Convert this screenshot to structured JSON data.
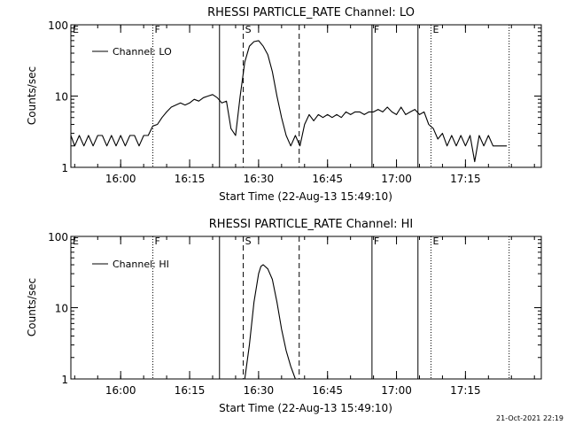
{
  "stamp": "21-Oct-2021 22:19",
  "chart_data": [
    {
      "type": "line",
      "title": "RHESSI PARTICLE_RATE Channel: LO",
      "xlabel": "Start Time (22-Aug-13 15:49:10)",
      "ylabel": "Counts/sec",
      "xlim": [
        "15:49:10",
        "17:31:30"
      ],
      "ylim": [
        1,
        100
      ],
      "yscale": "log",
      "yticks": [
        "1",
        "10",
        "100"
      ],
      "xticks": [
        "16:00",
        "16:15",
        "16:30",
        "16:45",
        "17:00",
        "17:15"
      ],
      "legend": {
        "position": "top-left",
        "entries": [
          "Channel: LO"
        ]
      },
      "markers": [
        {
          "time": "16:07:00",
          "label": "F",
          "style": "dotted"
        },
        {
          "time": "16:21:30",
          "label": "",
          "style": "solid"
        },
        {
          "time": "16:26:40",
          "label": "S",
          "style": "dashed"
        },
        {
          "time": "16:38:50",
          "label": "",
          "style": "dashed"
        },
        {
          "time": "16:54:40",
          "label": "F",
          "style": "solid"
        },
        {
          "time": "17:04:40",
          "label": "",
          "style": "solid"
        },
        {
          "time": "17:07:30",
          "label": "E",
          "style": "dotted"
        },
        {
          "time": "17:24:30",
          "label": "",
          "style": "dotted"
        },
        {
          "time": "15:49:10",
          "label": "E",
          "style": "none"
        }
      ],
      "series": [
        {
          "name": "Channel: LO",
          "x": [
            "15:49:10",
            "15:50:00",
            "15:51:00",
            "15:52:00",
            "15:53:00",
            "15:54:00",
            "15:55:00",
            "15:56:00",
            "15:57:00",
            "15:58:00",
            "15:59:00",
            "16:00:00",
            "16:01:00",
            "16:02:00",
            "16:03:00",
            "16:04:00",
            "16:05:00",
            "16:06:00",
            "16:07:00",
            "16:08:00",
            "16:09:00",
            "16:10:00",
            "16:11:00",
            "16:12:00",
            "16:13:00",
            "16:14:00",
            "16:15:00",
            "16:16:00",
            "16:17:00",
            "16:18:00",
            "16:19:00",
            "16:20:00",
            "16:21:00",
            "16:22:00",
            "16:23:00",
            "16:24:00",
            "16:25:00",
            "16:26:00",
            "16:27:00",
            "16:28:00",
            "16:29:00",
            "16:30:00",
            "16:31:00",
            "16:32:00",
            "16:33:00",
            "16:34:00",
            "16:35:00",
            "16:36:00",
            "16:37:00",
            "16:38:00",
            "16:39:00",
            "16:40:00",
            "16:41:00",
            "16:42:00",
            "16:43:00",
            "16:44:00",
            "16:45:00",
            "16:46:00",
            "16:47:00",
            "16:48:00",
            "16:49:00",
            "16:50:00",
            "16:51:00",
            "16:52:00",
            "16:53:00",
            "16:54:00",
            "16:55:00",
            "16:56:00",
            "16:57:00",
            "16:58:00",
            "16:59:00",
            "17:00:00",
            "17:01:00",
            "17:02:00",
            "17:03:00",
            "17:04:00",
            "17:05:00",
            "17:06:00",
            "17:07:00",
            "17:08:00",
            "17:09:00",
            "17:10:00",
            "17:11:00",
            "17:12:00",
            "17:13:00",
            "17:14:00",
            "17:15:00",
            "17:16:00",
            "17:17:00",
            "17:18:00",
            "17:19:00",
            "17:20:00",
            "17:21:00",
            "17:22:00",
            "17:23:00",
            "17:24:00"
          ],
          "y": [
            2.8,
            2,
            2.8,
            2,
            2.8,
            2,
            2.8,
            2.8,
            2,
            2.8,
            2,
            2.8,
            2,
            2.8,
            2.8,
            2,
            2.8,
            2.8,
            3.8,
            4,
            5,
            6,
            7,
            7.5,
            8,
            7.5,
            8,
            9,
            8.5,
            9.5,
            10,
            10.5,
            9.5,
            8,
            8.5,
            3.5,
            2.8,
            10,
            30,
            50,
            58,
            60,
            50,
            38,
            22,
            10,
            5,
            2.8,
            2,
            2.8,
            2,
            4,
            5.5,
            4.5,
            5.5,
            5,
            5.5,
            5,
            5.5,
            5,
            6,
            5.5,
            6,
            6,
            5.5,
            6,
            6,
            6.5,
            6,
            7,
            6,
            5.5,
            7,
            5.5,
            6,
            6.5,
            5.5,
            6,
            4,
            3.5,
            2.5,
            3,
            2,
            2.8,
            2,
            2.8,
            2,
            2.8,
            1.2,
            2.8,
            2,
            2.8,
            2,
            2,
            2,
            2
          ]
        }
      ]
    },
    {
      "type": "line",
      "title": "RHESSI PARTICLE_RATE Channel: HI",
      "xlabel": "Start Time (22-Aug-13 15:49:10)",
      "ylabel": "Counts/sec",
      "xlim": [
        "15:49:10",
        "17:31:30"
      ],
      "ylim": [
        1,
        100
      ],
      "yscale": "log",
      "yticks": [
        "1",
        "10",
        "100"
      ],
      "xticks": [
        "16:00",
        "16:15",
        "16:30",
        "16:45",
        "17:00",
        "17:15"
      ],
      "legend": {
        "position": "top-left",
        "entries": [
          "Channel: HI"
        ]
      },
      "markers": [
        {
          "time": "16:07:00",
          "label": "F",
          "style": "dotted"
        },
        {
          "time": "16:21:30",
          "label": "",
          "style": "solid"
        },
        {
          "time": "16:26:40",
          "label": "S",
          "style": "dashed"
        },
        {
          "time": "16:38:50",
          "label": "",
          "style": "dashed"
        },
        {
          "time": "16:54:40",
          "label": "F",
          "style": "solid"
        },
        {
          "time": "17:04:40",
          "label": "",
          "style": "solid"
        },
        {
          "time": "17:07:30",
          "label": "E",
          "style": "dotted"
        },
        {
          "time": "17:24:30",
          "label": "",
          "style": "dotted"
        },
        {
          "time": "15:49:10",
          "label": "E",
          "style": "none"
        }
      ],
      "series": [
        {
          "name": "Channel: HI",
          "x": [
            "16:27:00",
            "16:28:00",
            "16:29:00",
            "16:30:00",
            "16:30:30",
            "16:31:00",
            "16:32:00",
            "16:33:00",
            "16:34:00",
            "16:35:00",
            "16:36:00",
            "16:37:00",
            "16:38:00"
          ],
          "y": [
            1,
            3,
            12,
            30,
            38,
            40,
            35,
            25,
            12,
            5,
            2.5,
            1.5,
            1
          ]
        }
      ]
    }
  ]
}
